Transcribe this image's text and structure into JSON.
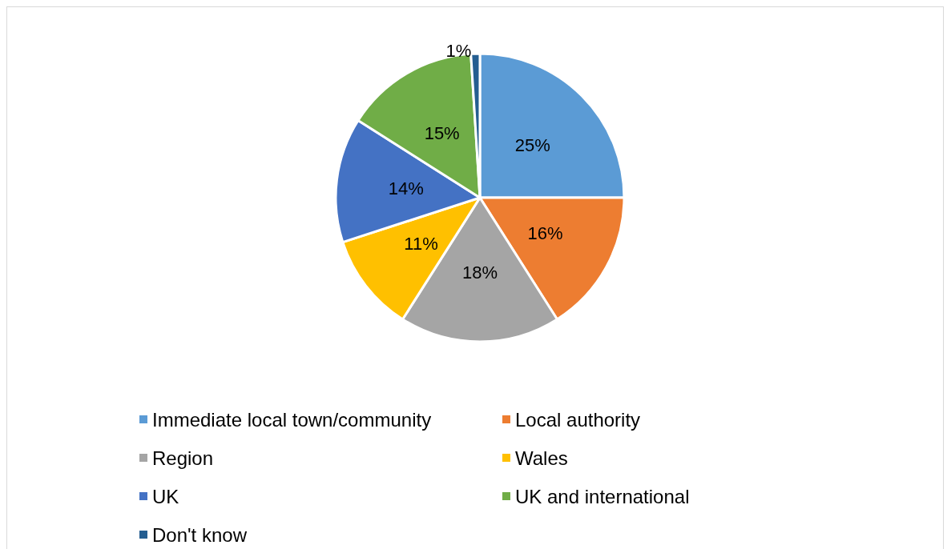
{
  "chart_data": {
    "type": "pie",
    "categories": [
      "Immediate local town/community",
      "Local authority",
      "Region",
      "Wales",
      "UK",
      "UK and international",
      "Don't know"
    ],
    "values": [
      25,
      16,
      18,
      11,
      14,
      15,
      1
    ],
    "colors": [
      "#5b9bd5",
      "#ed7d31",
      "#a5a5a5",
      "#ffc000",
      "#4472c4",
      "#70ad47",
      "#255e91"
    ],
    "value_labels": [
      "25%",
      "16%",
      "18%",
      "11%",
      "14%",
      "15%",
      "1%"
    ],
    "legend": "bottom"
  }
}
